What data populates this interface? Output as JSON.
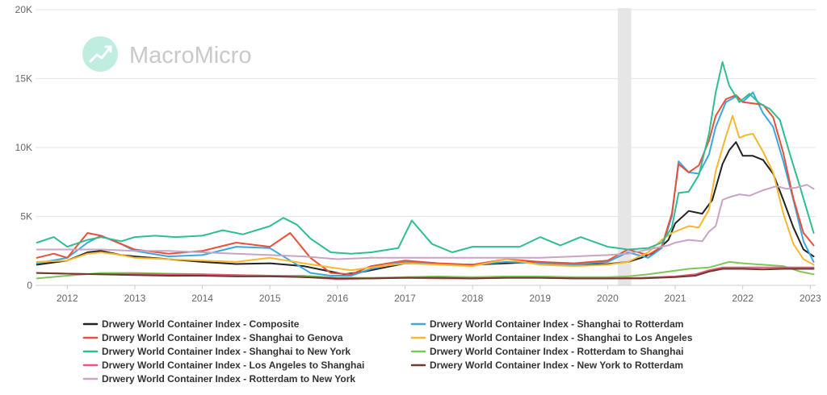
{
  "watermark": {
    "text": "MacroMicro"
  },
  "chart_data": {
    "type": "line",
    "y_ticks": [
      {
        "value": 0,
        "label": "0"
      },
      {
        "value": 5000,
        "label": "5K"
      },
      {
        "value": 10000,
        "label": "10K"
      },
      {
        "value": 15000,
        "label": "15K"
      },
      {
        "value": 20000,
        "label": "20K"
      }
    ],
    "x_ticks": [
      {
        "value": 2012,
        "label": "2012"
      },
      {
        "value": 2013,
        "label": "2013"
      },
      {
        "value": 2014,
        "label": "2014"
      },
      {
        "value": 2015,
        "label": "2015"
      },
      {
        "value": 2016,
        "label": "2016"
      },
      {
        "value": 2017,
        "label": "2017"
      },
      {
        "value": 2018,
        "label": "2018"
      },
      {
        "value": 2019,
        "label": "2019"
      },
      {
        "value": 2020,
        "label": "2020"
      },
      {
        "value": 2021,
        "label": "2021"
      },
      {
        "value": 2022,
        "label": "2022"
      },
      {
        "value": 2023,
        "label": "2023"
      }
    ],
    "xlim": [
      2011.53,
      2023.08
    ],
    "ylim": [
      0,
      20000
    ],
    "grid": "horizontal",
    "legend_position": "bottom",
    "shaded_region": {
      "x_start": 2020.15,
      "x_end": 2020.35,
      "color": "#e6e6e6"
    },
    "series": [
      {
        "name": "Drwery World Container Index - Composite",
        "color": "#222222",
        "x": [
          2011.55,
          2012.0,
          2012.3,
          2012.5,
          2012.8,
          2013.0,
          2013.5,
          2014.0,
          2014.5,
          2015.0,
          2015.5,
          2015.9,
          2016.1,
          2016.4,
          2016.7,
          2017.0,
          2017.5,
          2018.0,
          2018.5,
          2019.0,
          2019.5,
          2020.0,
          2020.3,
          2020.5,
          2020.7,
          2020.9,
          2021.0,
          2021.2,
          2021.4,
          2021.55,
          2021.7,
          2021.8,
          2021.9,
          2022.0,
          2022.15,
          2022.3,
          2022.45,
          2022.6,
          2022.75,
          2022.9,
          2023.05
        ],
        "y": [
          1500,
          1800,
          2400,
          2500,
          2200,
          2100,
          1900,
          1700,
          1550,
          1600,
          1400,
          1000,
          800,
          1000,
          1300,
          1600,
          1550,
          1500,
          1600,
          1700,
          1500,
          1550,
          1700,
          2000,
          2400,
          3300,
          4500,
          5400,
          5200,
          6200,
          8800,
          9800,
          10400,
          9400,
          9400,
          9100,
          8100,
          6200,
          4200,
          2600,
          2100
        ]
      },
      {
        "name": "Drwery World Container Index - Shanghai to Rotterdam",
        "color": "#3aa8e0",
        "x": [
          2011.55,
          2012.0,
          2012.3,
          2012.5,
          2012.8,
          2013.0,
          2013.5,
          2014.0,
          2014.5,
          2015.0,
          2015.3,
          2015.6,
          2015.9,
          2016.2,
          2016.5,
          2017.0,
          2017.5,
          2018.0,
          2018.5,
          2019.0,
          2019.5,
          2020.0,
          2020.3,
          2020.6,
          2020.8,
          2020.95,
          2021.05,
          2021.2,
          2021.35,
          2021.5,
          2021.6,
          2021.75,
          2021.9,
          2022.0,
          2022.15,
          2022.3,
          2022.45,
          2022.6,
          2022.75,
          2022.9,
          2023.05
        ],
        "y": [
          1600,
          2000,
          3100,
          3600,
          3000,
          2500,
          2100,
          2200,
          2800,
          2700,
          1800,
          900,
          700,
          700,
          1200,
          1700,
          1500,
          1500,
          1700,
          1600,
          1500,
          1700,
          2400,
          2000,
          2700,
          5000,
          9000,
          8200,
          8100,
          9500,
          11500,
          13300,
          13700,
          13300,
          14000,
          12500,
          11500,
          9000,
          6200,
          3200,
          1700
        ]
      },
      {
        "name": "Drwery World Container Index - Shanghai to Genova",
        "color": "#e8503a",
        "x": [
          2011.55,
          2011.8,
          2012.0,
          2012.3,
          2012.5,
          2012.8,
          2013.0,
          2013.5,
          2014.0,
          2014.5,
          2015.0,
          2015.3,
          2015.6,
          2015.9,
          2016.2,
          2016.5,
          2017.0,
          2017.5,
          2018.0,
          2018.5,
          2019.0,
          2019.5,
          2020.0,
          2020.3,
          2020.6,
          2020.8,
          2020.95,
          2021.05,
          2021.2,
          2021.35,
          2021.5,
          2021.6,
          2021.75,
          2021.9,
          2022.0,
          2022.15,
          2022.3,
          2022.45,
          2022.6,
          2022.75,
          2022.9,
          2023.05
        ],
        "y": [
          2000,
          2300,
          2000,
          3800,
          3600,
          3000,
          2600,
          2300,
          2500,
          3100,
          2800,
          3800,
          2000,
          900,
          800,
          1400,
          1800,
          1600,
          1500,
          1900,
          1700,
          1600,
          1800,
          2600,
          2200,
          2800,
          5200,
          8800,
          8200,
          8700,
          10500,
          12300,
          13500,
          13800,
          13300,
          13200,
          13100,
          12200,
          9600,
          6300,
          3800,
          2900
        ]
      },
      {
        "name": "Drwery World Container Index - Shanghai to Los Angeles",
        "color": "#f5b82e",
        "x": [
          2011.55,
          2012.0,
          2012.3,
          2012.5,
          2012.8,
          2013.0,
          2013.5,
          2014.0,
          2014.5,
          2015.0,
          2015.5,
          2015.9,
          2016.2,
          2016.5,
          2017.0,
          2017.5,
          2018.0,
          2018.5,
          2019.0,
          2019.5,
          2020.0,
          2020.3,
          2020.6,
          2020.8,
          2020.95,
          2021.05,
          2021.2,
          2021.35,
          2021.5,
          2021.6,
          2021.75,
          2021.85,
          2021.95,
          2022.05,
          2022.15,
          2022.3,
          2022.45,
          2022.6,
          2022.75,
          2022.9,
          2023.05
        ],
        "y": [
          1700,
          1800,
          2300,
          2400,
          2200,
          2000,
          1900,
          1800,
          1700,
          2000,
          1600,
          1300,
          1100,
          1300,
          1600,
          1500,
          1400,
          1900,
          1500,
          1400,
          1500,
          1700,
          2400,
          3300,
          3800,
          4000,
          4300,
          4200,
          5500,
          8300,
          10800,
          12300,
          10700,
          10900,
          11000,
          9700,
          8200,
          5200,
          3000,
          1900,
          1500
        ]
      },
      {
        "name": "Drwery World Container Index - Shanghai to New York",
        "color": "#2dbe91",
        "x": [
          2011.55,
          2011.8,
          2012.0,
          2012.3,
          2012.5,
          2012.8,
          2013.0,
          2013.3,
          2013.6,
          2014.0,
          2014.3,
          2014.6,
          2015.0,
          2015.2,
          2015.4,
          2015.6,
          2015.9,
          2016.2,
          2016.5,
          2016.9,
          2017.1,
          2017.4,
          2017.7,
          2018.0,
          2018.4,
          2018.7,
          2019.0,
          2019.3,
          2019.6,
          2020.0,
          2020.3,
          2020.6,
          2020.8,
          2020.95,
          2021.05,
          2021.2,
          2021.35,
          2021.5,
          2021.6,
          2021.7,
          2021.8,
          2021.95,
          2022.1,
          2022.25,
          2022.4,
          2022.55,
          2022.7,
          2022.85,
          2023.05
        ],
        "y": [
          3100,
          3500,
          2800,
          3300,
          3500,
          3200,
          3500,
          3600,
          3500,
          3600,
          4000,
          3700,
          4300,
          4900,
          4400,
          3400,
          2400,
          2300,
          2400,
          2700,
          4700,
          3000,
          2400,
          2800,
          2800,
          2800,
          3500,
          2900,
          3500,
          2800,
          2600,
          2700,
          3100,
          4200,
          6700,
          6800,
          8000,
          11000,
          14000,
          16200,
          14500,
          13300,
          13900,
          13200,
          12800,
          12000,
          9500,
          7100,
          3800
        ]
      },
      {
        "name": "Drwery World Container Index - Rotterdam to Shanghai",
        "color": "#7cc859",
        "x": [
          2011.55,
          2012.0,
          2012.5,
          2013.0,
          2013.5,
          2014.0,
          2014.5,
          2015.0,
          2015.5,
          2016.0,
          2016.5,
          2017.0,
          2017.5,
          2018.0,
          2018.5,
          2019.0,
          2019.5,
          2020.0,
          2020.3,
          2020.6,
          2020.9,
          2021.2,
          2021.5,
          2021.8,
          2022.0,
          2022.3,
          2022.6,
          2022.85,
          2023.05
        ],
        "y": [
          500,
          700,
          900,
          900,
          850,
          800,
          750,
          700,
          700,
          550,
          550,
          600,
          650,
          600,
          650,
          650,
          600,
          600,
          650,
          800,
          1000,
          1200,
          1300,
          1700,
          1600,
          1500,
          1400,
          1000,
          800
        ]
      },
      {
        "name": "Drwery World Container Index - Los Angeles to Shanghai",
        "color": "#e8577f",
        "x": [
          2011.55,
          2012.0,
          2012.5,
          2013.0,
          2013.5,
          2014.0,
          2014.5,
          2015.0,
          2015.5,
          2016.0,
          2016.5,
          2017.0,
          2017.5,
          2018.0,
          2018.5,
          2019.0,
          2019.5,
          2020.0,
          2020.5,
          2021.0,
          2021.3,
          2021.5,
          2021.7,
          2022.0,
          2022.3,
          2022.6,
          2022.85,
          2023.05
        ],
        "y": [
          900,
          850,
          800,
          850,
          800,
          800,
          750,
          700,
          600,
          450,
          500,
          550,
          500,
          500,
          550,
          550,
          500,
          500,
          550,
          650,
          800,
          1100,
          1300,
          1300,
          1300,
          1300,
          1300,
          1300
        ]
      },
      {
        "name": "Drwery World Container Index - New York to Rotterdam",
        "color": "#6b3b2e",
        "x": [
          2011.55,
          2012.0,
          2012.5,
          2013.0,
          2013.5,
          2014.0,
          2014.5,
          2015.0,
          2015.5,
          2016.0,
          2016.5,
          2017.0,
          2017.5,
          2018.0,
          2018.5,
          2019.0,
          2019.5,
          2020.0,
          2020.5,
          2021.0,
          2021.3,
          2021.5,
          2021.7,
          2022.0,
          2022.3,
          2022.6,
          2022.85,
          2023.05
        ],
        "y": [
          900,
          850,
          800,
          750,
          700,
          700,
          650,
          650,
          600,
          500,
          500,
          550,
          550,
          500,
          550,
          550,
          500,
          500,
          500,
          600,
          700,
          1000,
          1200,
          1200,
          1150,
          1200,
          1200,
          1200
        ]
      },
      {
        "name": "Drwery World Container Index - Rotterdam to New York",
        "color": "#c8a4c4",
        "x": [
          2011.55,
          2012.0,
          2012.5,
          2013.0,
          2013.5,
          2014.0,
          2014.5,
          2015.0,
          2015.5,
          2016.0,
          2016.5,
          2017.0,
          2017.5,
          2018.0,
          2018.5,
          2019.0,
          2019.5,
          2020.0,
          2020.3,
          2020.6,
          2020.9,
          2021.0,
          2021.2,
          2021.4,
          2021.5,
          2021.6,
          2021.7,
          2021.8,
          2021.95,
          2022.1,
          2022.3,
          2022.5,
          2022.65,
          2022.8,
          2022.95,
          2023.05
        ],
        "y": [
          2600,
          2600,
          2600,
          2500,
          2500,
          2400,
          2300,
          2200,
          2100,
          1900,
          2000,
          2000,
          2000,
          2000,
          2000,
          2000,
          2100,
          2200,
          2300,
          2600,
          2900,
          3100,
          3300,
          3200,
          3900,
          4300,
          6200,
          6400,
          6600,
          6500,
          6900,
          7200,
          7000,
          7100,
          7300,
          7000
        ]
      }
    ]
  }
}
